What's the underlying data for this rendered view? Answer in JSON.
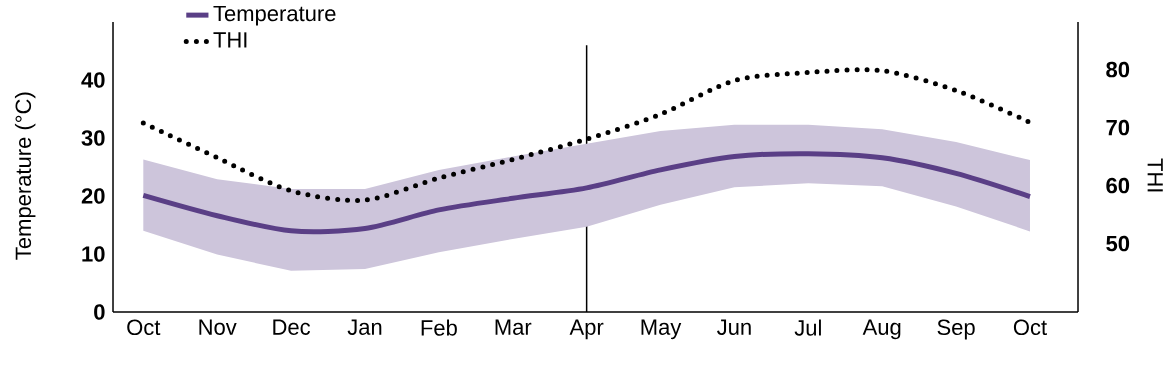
{
  "chart_data": {
    "type": "line",
    "categories": [
      "Oct",
      "Nov",
      "Dec",
      "Jan",
      "Feb",
      "Mar",
      "Apr",
      "May",
      "Jun",
      "Jul",
      "Aug",
      "Sep",
      "Oct"
    ],
    "ylabel": "Temperature (°C)",
    "y2label": "THI",
    "ylim": [
      0,
      50
    ],
    "yticks": [
      0,
      10,
      20,
      30,
      40
    ],
    "y2lim": [
      38.2,
      88.2
    ],
    "y2ticks": [
      50,
      60,
      70,
      80
    ],
    "legend": "top left",
    "ref_lines": [
      {
        "axis": "x",
        "value": "Apr",
        "color": "#000000"
      }
    ],
    "series": [
      {
        "name": "Temperature",
        "color": "#5a3f86",
        "values": [
          20.1,
          16.6,
          14.0,
          14.4,
          17.6,
          19.6,
          21.4,
          24.5,
          26.8,
          27.3,
          26.6,
          23.9,
          19.9
        ],
        "lower": [
          14.0,
          9.9,
          7.1,
          7.4,
          10.3,
          12.6,
          14.7,
          18.5,
          21.5,
          22.2,
          21.7,
          18.2,
          13.9
        ],
        "upper": [
          26.3,
          22.9,
          21.2,
          21.2,
          24.5,
          26.8,
          29.0,
          31.2,
          32.3,
          32.3,
          31.5,
          29.3,
          26.2
        ]
      },
      {
        "name": "THI",
        "axis": "y2",
        "color": "#000000",
        "line_style": "dotted",
        "values": [
          70.8,
          64.8,
          59.1,
          57.5,
          61.3,
          64.5,
          68.0,
          72.3,
          78.1,
          79.5,
          79.8,
          76.4,
          70.9
        ]
      }
    ]
  }
}
